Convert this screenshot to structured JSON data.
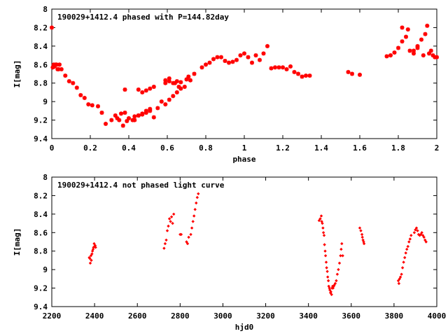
{
  "chart_data": [
    {
      "type": "scatter",
      "title": "190029+1412.4 phased with P=144.82day",
      "xlabel": "phase",
      "ylabel": "I[mag]",
      "xlim": [
        0,
        2
      ],
      "ylim": [
        8,
        9.4
      ],
      "y_inverted": true,
      "x_ticks": [
        "0",
        "0.2",
        "0.4",
        "0.6",
        "0.8",
        "1",
        "1.2",
        "1.4",
        "1.6",
        "1.8",
        "2"
      ],
      "y_ticks": [
        "8",
        "8.2",
        "8.4",
        "8.6",
        "8.8",
        "9",
        "9.2",
        "9.4"
      ],
      "grid": false,
      "marker": "asterisk",
      "color": "#ff0000",
      "series": [
        {
          "x": [
            0.0,
            0.01,
            0.02,
            0.03,
            0.04,
            0.05,
            0.07,
            0.09,
            0.11,
            0.13,
            0.15,
            0.17,
            0.19,
            0.21,
            0.24,
            0.26,
            0.28,
            0.31,
            0.33,
            0.35,
            0.37,
            0.38,
            0.38,
            0.4,
            0.43,
            0.45,
            0.47,
            0.49,
            0.51,
            0.53,
            0.55,
            0.57,
            0.59,
            0.61,
            0.63,
            0.65,
            0.67,
            0.69,
            0.72,
            0.74,
            0.78,
            0.8,
            0.82,
            0.84,
            0.86,
            0.88,
            0.9,
            0.92,
            0.94,
            0.96,
            0.98,
            1.0,
            1.02,
            1.04,
            1.06,
            1.08,
            1.1,
            1.12,
            1.14,
            1.16,
            1.18,
            1.2,
            1.22,
            1.24,
            1.26,
            1.28,
            1.3,
            1.32,
            1.34,
            1.54,
            1.56,
            1.6,
            1.74,
            1.76,
            1.78,
            1.8,
            1.82,
            1.84,
            1.86,
            1.88,
            1.9,
            1.92,
            1.94,
            1.96,
            1.98,
            2.0,
            0.45,
            0.47,
            0.49,
            0.51,
            0.53,
            0.59,
            0.61,
            0.63,
            0.65,
            0.67,
            0.7,
            0.71,
            0.59,
            0.61,
            0.64,
            0.66,
            0.43,
            0.45,
            0.47,
            0.49,
            0.51,
            0.36,
            0.34,
            0.39,
            0.42,
            1.82,
            1.85,
            1.88,
            1.9,
            1.93,
            1.95,
            1.97,
            1.99,
            0.005,
            0.015,
            0.025,
            0.035
          ],
          "y": [
            8.2,
            8.6,
            8.6,
            8.65,
            8.6,
            8.65,
            8.72,
            8.78,
            8.8,
            8.85,
            8.93,
            8.96,
            9.03,
            9.04,
            9.05,
            9.12,
            9.24,
            9.2,
            9.15,
            9.2,
            9.26,
            9.12,
            8.87,
            9.18,
            9.2,
            9.15,
            9.14,
            9.1,
            9.08,
            9.17,
            9.07,
            9.0,
            9.03,
            8.98,
            8.94,
            8.9,
            8.86,
            8.84,
            8.77,
            8.7,
            8.63,
            8.6,
            8.58,
            8.54,
            8.52,
            8.52,
            8.56,
            8.58,
            8.57,
            8.55,
            8.5,
            8.48,
            8.52,
            8.58,
            8.5,
            8.55,
            8.48,
            8.4,
            8.64,
            8.63,
            8.63,
            8.63,
            8.65,
            8.62,
            8.68,
            8.7,
            8.73,
            8.72,
            8.72,
            8.68,
            8.7,
            8.71,
            8.51,
            8.5,
            8.47,
            8.42,
            8.35,
            8.3,
            8.45,
            8.48,
            8.4,
            8.33,
            8.27,
            8.48,
            8.5,
            8.52,
            8.87,
            8.9,
            8.88,
            8.86,
            8.84,
            8.8,
            8.78,
            8.8,
            8.78,
            8.79,
            8.76,
            8.73,
            8.77,
            8.75,
            8.8,
            8.84,
            9.16,
            9.15,
            9.13,
            9.12,
            9.1,
            9.13,
            9.18,
            9.21,
            9.2,
            8.2,
            8.22,
            8.45,
            8.42,
            8.5,
            8.18,
            8.45,
            8.52,
            8.63,
            8.62,
            8.6,
            8.65
          ]
        }
      ]
    },
    {
      "type": "scatter",
      "title": "190029+1412.4 not phased light curve",
      "xlabel": "hjd0",
      "ylabel": "I[mag]",
      "xlim": [
        2200,
        4000
      ],
      "ylim": [
        8,
        9.4
      ],
      "y_inverted": true,
      "x_ticks": [
        "2200",
        "2400",
        "2600",
        "2800",
        "3000",
        "3200",
        "3400",
        "3600",
        "3800",
        "4000"
      ],
      "y_ticks": [
        "8",
        "8.2",
        "8.4",
        "8.6",
        "8.8",
        "9",
        "9.2",
        "9.4"
      ],
      "grid": false,
      "marker": "diamond",
      "color": "#ff0000",
      "series": [
        {
          "x": [
            2375,
            2378,
            2380,
            2383,
            2385,
            2388,
            2390,
            2393,
            2395,
            2398,
            2400,
            2403,
            2405,
            2725,
            2730,
            2735,
            2740,
            2745,
            2750,
            2755,
            2760,
            2765,
            2770,
            2800,
            2805,
            2830,
            2835,
            2840,
            2850,
            2855,
            2860,
            2865,
            2870,
            2875,
            2880,
            2885,
            3450,
            3455,
            3460,
            3462,
            3465,
            3468,
            3470,
            3473,
            3475,
            3478,
            3480,
            3483,
            3485,
            3488,
            3490,
            3493,
            3495,
            3498,
            3500,
            3503,
            3505,
            3508,
            3510,
            3513,
            3515,
            3518,
            3520,
            3525,
            3530,
            3535,
            3540,
            3545,
            3550,
            3553,
            3556,
            3560,
            3640,
            3645,
            3650,
            3652,
            3655,
            3658,
            3660,
            3820,
            3823,
            3826,
            3830,
            3835,
            3840,
            3845,
            3850,
            3855,
            3860,
            3865,
            3870,
            3875,
            3880,
            3895,
            3900,
            3905,
            3910,
            3915,
            3920,
            3925,
            3930,
            3935,
            3940,
            3945,
            3950
          ],
          "y": [
            8.87,
            8.88,
            8.93,
            8.85,
            8.9,
            8.83,
            8.8,
            8.78,
            8.76,
            8.72,
            8.75,
            8.74,
            8.76,
            8.77,
            8.72,
            8.68,
            8.58,
            8.53,
            8.45,
            8.48,
            8.43,
            8.5,
            8.4,
            8.62,
            8.62,
            8.7,
            8.72,
            8.65,
            8.62,
            8.55,
            8.48,
            8.42,
            8.35,
            8.28,
            8.22,
            8.18,
            8.47,
            8.45,
            8.42,
            8.48,
            8.5,
            8.55,
            8.6,
            8.63,
            8.73,
            8.8,
            8.85,
            8.92,
            8.98,
            9.02,
            9.08,
            9.12,
            9.18,
            9.2,
            9.22,
            9.25,
            9.24,
            9.27,
            9.2,
            9.18,
            9.2,
            9.18,
            9.17,
            9.15,
            9.12,
            9.05,
            9.0,
            8.93,
            8.85,
            8.78,
            8.72,
            8.85,
            8.55,
            8.58,
            8.62,
            8.65,
            8.68,
            8.7,
            8.72,
            9.12,
            9.15,
            9.1,
            9.08,
            9.05,
            8.98,
            8.92,
            8.87,
            8.82,
            8.78,
            8.75,
            8.7,
            8.67,
            8.63,
            8.6,
            8.57,
            8.55,
            8.58,
            8.62,
            8.63,
            8.62,
            8.6,
            8.63,
            8.65,
            8.68,
            8.7
          ]
        }
      ]
    }
  ]
}
